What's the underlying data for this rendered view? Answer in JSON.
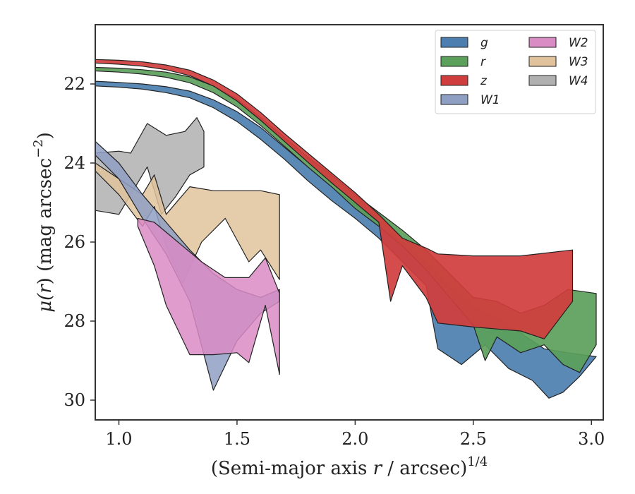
{
  "chart_data": {
    "type": "area",
    "xlabel": "(Semi-major axis r / arcsec)",
    "xlabel_parts": {
      "prefix": "(Semi-major axis ",
      "var": "r",
      "suffix": " / arcsec)",
      "exponent": "1/4"
    },
    "ylabel_parts": {
      "mu": "μ(",
      "var": "r",
      "mid": ") (mag arcsec",
      "exponent": "−2",
      "end": ")"
    },
    "xlim": [
      0.9,
      3.05
    ],
    "ylim": [
      30.5,
      20.5
    ],
    "y_inverted": true,
    "xticks": [
      "1.0",
      "1.5",
      "2.0",
      "2.5",
      "3.0"
    ],
    "yticks": [
      "22",
      "24",
      "26",
      "28",
      "30"
    ],
    "grid": false,
    "legend_placement": "top-right",
    "legend_columns": 2,
    "series": [
      {
        "name": "g",
        "color": "#4c7fb0",
        "upper": [
          [
            0.9,
            21.93
          ],
          [
            1.0,
            21.96
          ],
          [
            1.1,
            22.0
          ],
          [
            1.2,
            22.07
          ],
          [
            1.3,
            22.18
          ],
          [
            1.4,
            22.4
          ],
          [
            1.5,
            22.7
          ],
          [
            1.6,
            23.1
          ],
          [
            1.7,
            23.6
          ],
          [
            1.8,
            24.1
          ],
          [
            1.9,
            24.6
          ],
          [
            2.0,
            25.05
          ],
          [
            2.1,
            25.5
          ],
          [
            2.2,
            26.0
          ],
          [
            2.3,
            26.5
          ],
          [
            2.4,
            27.1
          ],
          [
            2.5,
            27.6
          ],
          [
            2.6,
            27.9
          ],
          [
            2.7,
            28.3
          ],
          [
            2.8,
            28.7
          ],
          [
            2.9,
            28.8
          ],
          [
            3.02,
            28.9
          ]
        ],
        "lower": [
          [
            0.9,
            22.05
          ],
          [
            1.0,
            22.08
          ],
          [
            1.1,
            22.13
          ],
          [
            1.2,
            22.22
          ],
          [
            1.3,
            22.35
          ],
          [
            1.4,
            22.6
          ],
          [
            1.5,
            22.95
          ],
          [
            1.6,
            23.4
          ],
          [
            1.7,
            23.9
          ],
          [
            1.8,
            24.45
          ],
          [
            1.9,
            24.95
          ],
          [
            2.0,
            25.4
          ],
          [
            2.1,
            25.9
          ],
          [
            2.2,
            26.5
          ],
          [
            2.3,
            27.1
          ],
          [
            2.35,
            28.7
          ],
          [
            2.45,
            29.1
          ],
          [
            2.55,
            28.6
          ],
          [
            2.65,
            29.2
          ],
          [
            2.75,
            29.5
          ],
          [
            2.82,
            29.95
          ],
          [
            2.88,
            29.8
          ],
          [
            2.95,
            29.4
          ]
        ]
      },
      {
        "name": "r",
        "color": "#5ba05b",
        "upper": [
          [
            0.9,
            21.58
          ],
          [
            1.0,
            21.6
          ],
          [
            1.1,
            21.64
          ],
          [
            1.2,
            21.7
          ],
          [
            1.3,
            21.82
          ],
          [
            1.4,
            22.05
          ],
          [
            1.5,
            22.38
          ],
          [
            1.6,
            22.85
          ],
          [
            1.7,
            23.35
          ],
          [
            1.8,
            23.85
          ],
          [
            1.9,
            24.3
          ],
          [
            2.0,
            24.8
          ],
          [
            2.1,
            25.25
          ],
          [
            2.2,
            25.7
          ],
          [
            2.3,
            26.2
          ],
          [
            2.4,
            26.8
          ],
          [
            2.5,
            27.4
          ],
          [
            2.6,
            27.5
          ],
          [
            2.7,
            27.8
          ],
          [
            2.8,
            27.6
          ],
          [
            2.9,
            27.2
          ],
          [
            3.02,
            27.3
          ]
        ],
        "lower": [
          [
            0.9,
            21.67
          ],
          [
            1.0,
            21.7
          ],
          [
            1.1,
            21.75
          ],
          [
            1.2,
            21.83
          ],
          [
            1.3,
            21.97
          ],
          [
            1.4,
            22.22
          ],
          [
            1.5,
            22.58
          ],
          [
            1.6,
            23.05
          ],
          [
            1.7,
            23.57
          ],
          [
            1.8,
            24.1
          ],
          [
            1.9,
            24.6
          ],
          [
            2.0,
            25.15
          ],
          [
            2.1,
            25.6
          ],
          [
            2.2,
            26.1
          ],
          [
            2.3,
            26.7
          ],
          [
            2.4,
            27.4
          ],
          [
            2.5,
            28.1
          ],
          [
            2.55,
            29.0
          ],
          [
            2.6,
            28.4
          ],
          [
            2.7,
            28.8
          ],
          [
            2.8,
            28.6
          ],
          [
            2.88,
            29.1
          ],
          [
            2.95,
            29.3
          ],
          [
            3.02,
            28.6
          ]
        ]
      },
      {
        "name": "z",
        "color": "#d03d3d",
        "upper": [
          [
            0.9,
            21.38
          ],
          [
            1.0,
            21.4
          ],
          [
            1.1,
            21.44
          ],
          [
            1.2,
            21.52
          ],
          [
            1.3,
            21.65
          ],
          [
            1.4,
            21.9
          ],
          [
            1.5,
            22.25
          ],
          [
            1.6,
            22.72
          ],
          [
            1.7,
            23.25
          ],
          [
            1.8,
            23.75
          ],
          [
            1.9,
            24.25
          ],
          [
            2.0,
            24.75
          ],
          [
            2.1,
            25.3
          ],
          [
            2.2,
            25.9
          ],
          [
            2.3,
            26.15
          ],
          [
            2.35,
            26.3
          ],
          [
            2.5,
            26.35
          ],
          [
            2.7,
            26.35
          ],
          [
            2.92,
            26.2
          ]
        ],
        "lower": [
          [
            0.9,
            21.47
          ],
          [
            1.0,
            21.5
          ],
          [
            1.1,
            21.55
          ],
          [
            1.2,
            21.64
          ],
          [
            1.3,
            21.79
          ],
          [
            1.4,
            22.05
          ],
          [
            1.5,
            22.43
          ],
          [
            1.6,
            22.92
          ],
          [
            1.7,
            23.45
          ],
          [
            1.8,
            23.98
          ],
          [
            1.9,
            24.5
          ],
          [
            2.0,
            25.0
          ],
          [
            2.1,
            25.5
          ],
          [
            2.15,
            27.5
          ],
          [
            2.2,
            26.6
          ],
          [
            2.3,
            27.4
          ],
          [
            2.35,
            28.05
          ],
          [
            2.5,
            28.15
          ],
          [
            2.6,
            28.2
          ],
          [
            2.7,
            28.25
          ],
          [
            2.8,
            28.45
          ],
          [
            2.92,
            27.5
          ]
        ]
      },
      {
        "name": "W1",
        "color": "#8f9fc4",
        "upper": [
          [
            0.9,
            23.45
          ],
          [
            1.0,
            24.0
          ],
          [
            1.1,
            24.8
          ],
          [
            1.2,
            25.5
          ],
          [
            1.3,
            26.2
          ],
          [
            1.4,
            26.8
          ],
          [
            1.5,
            27.2
          ],
          [
            1.6,
            27.4
          ],
          [
            1.68,
            27.2
          ]
        ],
        "lower": [
          [
            0.9,
            23.8
          ],
          [
            1.0,
            24.4
          ],
          [
            1.1,
            25.4
          ],
          [
            1.2,
            26.3
          ],
          [
            1.3,
            27.5
          ],
          [
            1.4,
            29.75
          ],
          [
            1.5,
            28.5
          ],
          [
            1.6,
            27.8
          ],
          [
            1.68,
            27.5
          ]
        ]
      },
      {
        "name": "W2",
        "color": "#d98bc4",
        "upper": [
          [
            1.08,
            25.4
          ],
          [
            1.15,
            25.5
          ],
          [
            1.25,
            26.0
          ],
          [
            1.35,
            26.5
          ],
          [
            1.45,
            26.9
          ],
          [
            1.55,
            26.9
          ],
          [
            1.62,
            26.4
          ],
          [
            1.68,
            27.3
          ]
        ],
        "lower": [
          [
            1.08,
            25.6
          ],
          [
            1.15,
            26.6
          ],
          [
            1.2,
            27.6
          ],
          [
            1.3,
            28.85
          ],
          [
            1.4,
            28.85
          ],
          [
            1.5,
            28.8
          ],
          [
            1.55,
            29.05
          ],
          [
            1.62,
            27.6
          ],
          [
            1.68,
            29.35
          ]
        ]
      },
      {
        "name": "W3",
        "color": "#e0c39c",
        "upper": [
          [
            0.9,
            24.0
          ],
          [
            1.0,
            24.4
          ],
          [
            1.1,
            24.8
          ],
          [
            1.15,
            24.3
          ],
          [
            1.2,
            25.3
          ],
          [
            1.3,
            24.6
          ],
          [
            1.4,
            24.7
          ],
          [
            1.5,
            24.7
          ],
          [
            1.6,
            24.7
          ],
          [
            1.68,
            24.8
          ]
        ],
        "lower": [
          [
            0.9,
            24.2
          ],
          [
            1.0,
            24.8
          ],
          [
            1.1,
            25.6
          ],
          [
            1.15,
            25.1
          ],
          [
            1.2,
            26.1
          ],
          [
            1.27,
            27.05
          ],
          [
            1.35,
            26.0
          ],
          [
            1.45,
            25.4
          ],
          [
            1.55,
            26.5
          ],
          [
            1.6,
            26.2
          ],
          [
            1.68,
            26.95
          ]
        ]
      },
      {
        "name": "W4",
        "color": "#b0b0b0",
        "upper": [
          [
            0.9,
            23.75
          ],
          [
            1.0,
            23.7
          ],
          [
            1.05,
            23.75
          ],
          [
            1.12,
            23.0
          ],
          [
            1.2,
            23.3
          ],
          [
            1.28,
            23.2
          ],
          [
            1.33,
            22.85
          ],
          [
            1.36,
            23.2
          ]
        ],
        "lower": [
          [
            0.9,
            25.2
          ],
          [
            1.0,
            25.3
          ],
          [
            1.05,
            24.8
          ],
          [
            1.12,
            24.1
          ],
          [
            1.18,
            25.3
          ],
          [
            1.24,
            24.85
          ],
          [
            1.3,
            24.3
          ],
          [
            1.36,
            24.1
          ]
        ]
      }
    ]
  }
}
